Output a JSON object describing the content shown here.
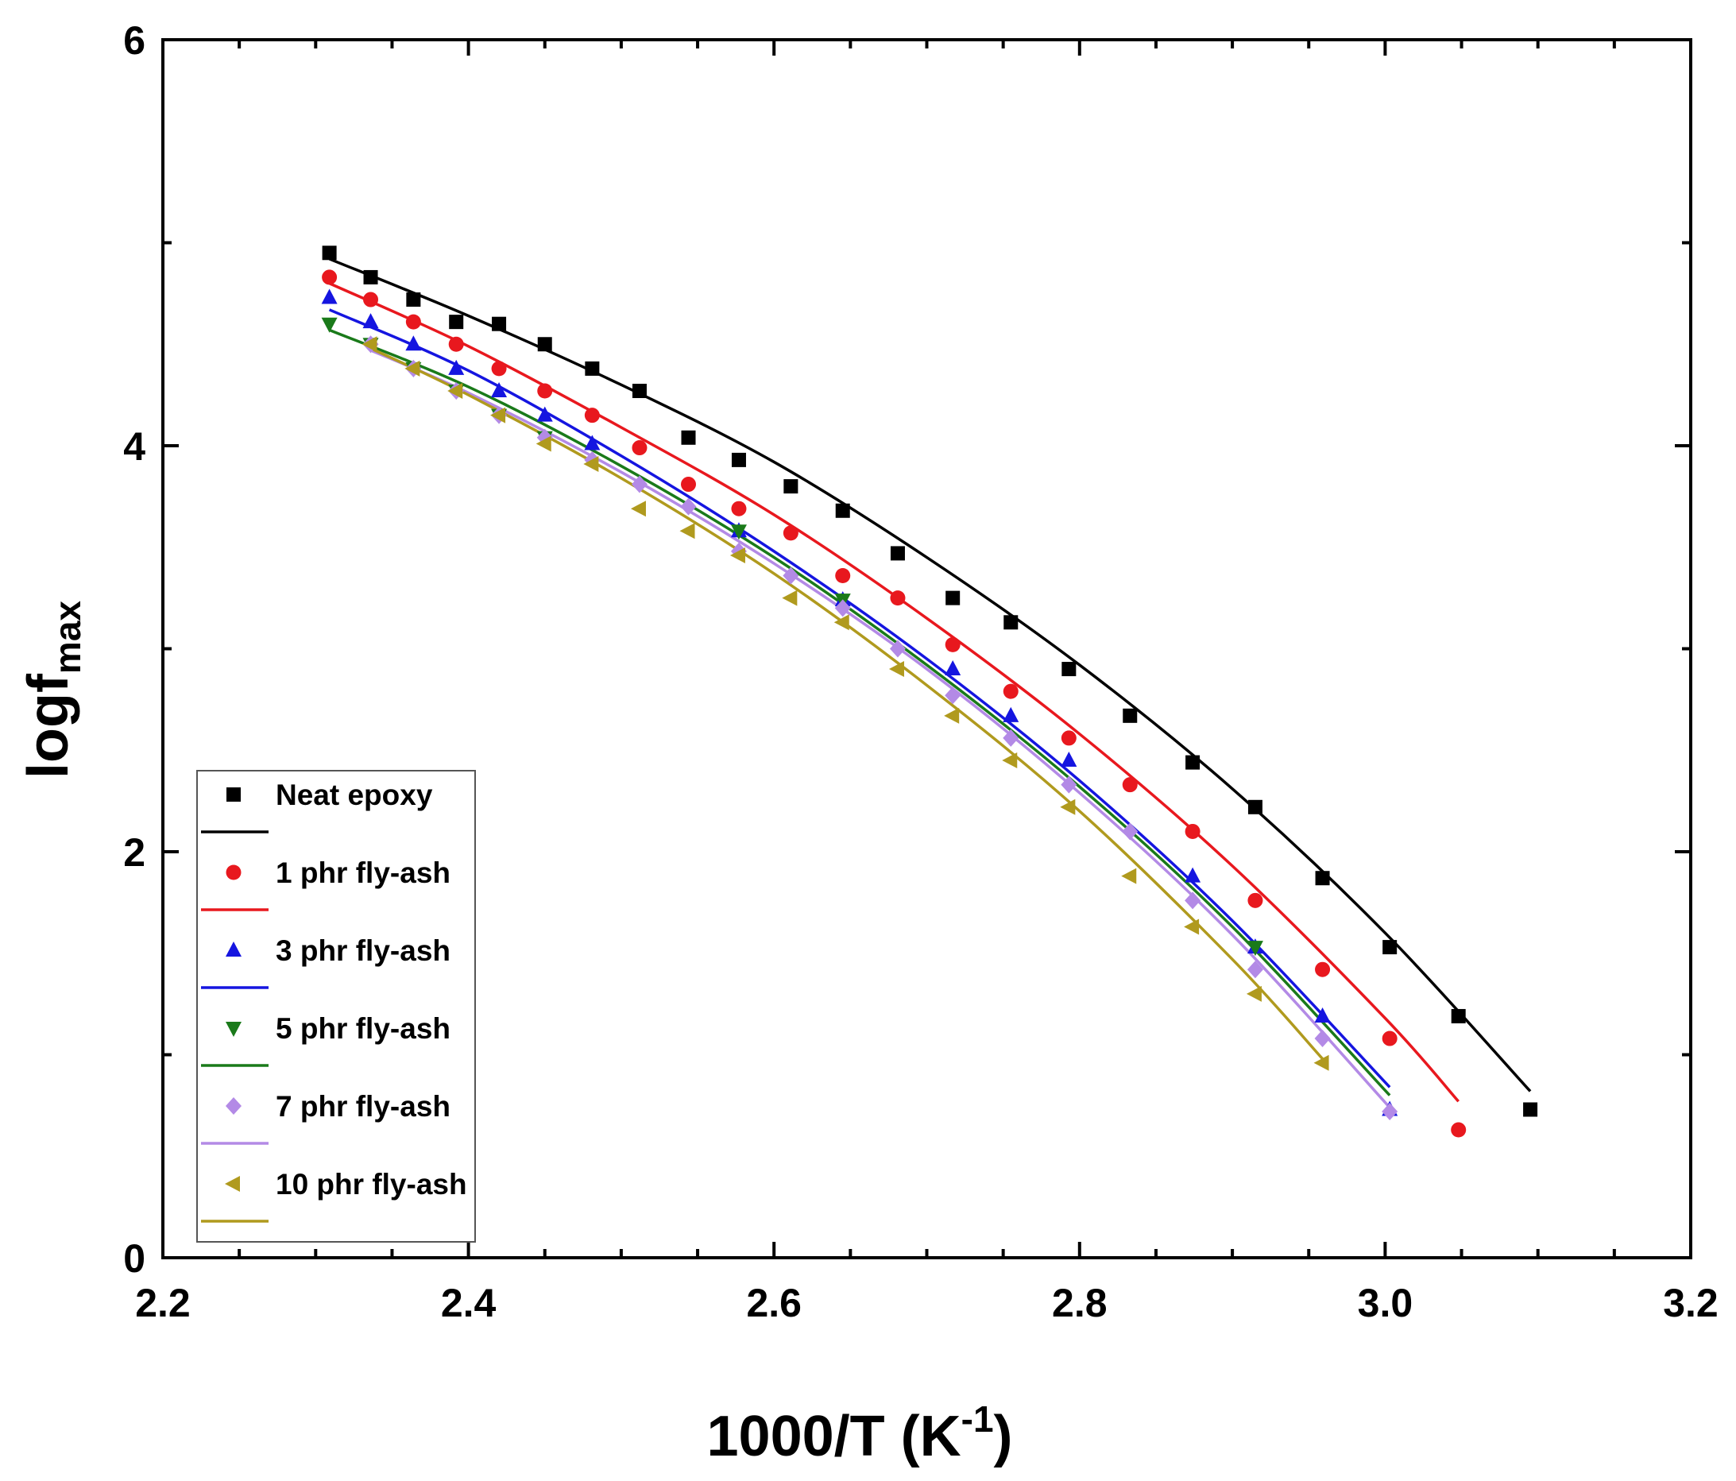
{
  "chart_data": {
    "type": "scatter",
    "title": "",
    "xlabel": "1000/T (K",
    "xlabel_sup": "-1",
    "xlabel_close": ")",
    "ylabel": "logf",
    "ylabel_sub": "max",
    "xlim": [
      2.2,
      3.2
    ],
    "ylim": [
      0,
      6
    ],
    "xticks": [
      2.2,
      2.4,
      2.6,
      2.8,
      3.0,
      3.2
    ],
    "xtick_labels": [
      "2.2",
      "2.4",
      "2.6",
      "2.8",
      "3.0",
      "3.2"
    ],
    "yticks": [
      0,
      2,
      4,
      6
    ],
    "ytick_labels": [
      "0",
      "2",
      "4",
      "6"
    ],
    "grid": false,
    "legend_position": "bottom-left",
    "series": [
      {
        "name": "Neat epoxy",
        "marker": "square",
        "color": "#000000",
        "x": [
          2.309,
          2.336,
          2.364,
          2.392,
          2.42,
          2.45,
          2.481,
          2.512,
          2.544,
          2.577,
          2.611,
          2.645,
          2.681,
          2.717,
          2.755,
          2.793,
          2.833,
          2.874,
          2.915,
          2.959,
          3.003,
          3.048,
          3.095
        ],
        "y": [
          4.95,
          4.83,
          4.72,
          4.61,
          4.6,
          4.5,
          4.38,
          4.27,
          4.04,
          3.93,
          3.8,
          3.68,
          3.47,
          3.25,
          3.13,
          2.9,
          2.67,
          2.44,
          2.22,
          1.87,
          1.53,
          1.19,
          0.73
        ],
        "fit": {
          "x": [
            2.309,
            2.4,
            2.5,
            2.6,
            2.7,
            2.8,
            2.9,
            3.0,
            3.095
          ],
          "y": [
            4.92,
            4.64,
            4.3,
            3.92,
            3.45,
            2.92,
            2.31,
            1.6,
            0.82
          ]
        }
      },
      {
        "name": "1 phr fly-ash",
        "marker": "circle",
        "color": "#e8181e",
        "x": [
          2.309,
          2.336,
          2.364,
          2.392,
          2.42,
          2.45,
          2.481,
          2.512,
          2.544,
          2.577,
          2.611,
          2.645,
          2.681,
          2.717,
          2.755,
          2.793,
          2.833,
          2.874,
          2.915,
          2.959,
          3.003,
          3.048
        ],
        "y": [
          4.83,
          4.72,
          4.61,
          4.5,
          4.38,
          4.27,
          4.15,
          3.99,
          3.81,
          3.69,
          3.57,
          3.36,
          3.25,
          3.02,
          2.79,
          2.56,
          2.33,
          2.1,
          1.76,
          1.42,
          1.08,
          0.63
        ],
        "fit": {
          "x": [
            2.309,
            2.4,
            2.5,
            2.6,
            2.7,
            2.8,
            2.9,
            3.0,
            3.048
          ],
          "y": [
            4.8,
            4.49,
            4.09,
            3.66,
            3.15,
            2.58,
            1.93,
            1.18,
            0.77
          ]
        }
      },
      {
        "name": "3 phr fly-ash",
        "marker": "triangle-up",
        "color": "#1515e0",
        "x": [
          2.309,
          2.336,
          2.364,
          2.392,
          2.42,
          2.45,
          2.481,
          2.577,
          2.645,
          2.717,
          2.755,
          2.793,
          2.874,
          2.915,
          2.959,
          3.003
        ],
        "y": [
          4.73,
          4.61,
          4.5,
          4.38,
          4.27,
          4.15,
          4.01,
          3.58,
          3.24,
          2.9,
          2.67,
          2.45,
          1.88,
          1.53,
          1.19,
          0.73
        ],
        "fit": {
          "x": [
            2.309,
            2.4,
            2.5,
            2.6,
            2.7,
            2.8,
            2.9,
            3.003
          ],
          "y": [
            4.67,
            4.37,
            3.95,
            3.48,
            2.95,
            2.35,
            1.66,
            0.84
          ]
        }
      },
      {
        "name": "5 phr fly-ash",
        "marker": "triangle-down",
        "color": "#1a7a1a",
        "x": [
          2.309,
          2.336,
          2.364,
          2.392,
          2.42,
          2.45,
          2.577,
          2.645,
          2.915
        ],
        "y": [
          4.6,
          4.5,
          4.38,
          4.27,
          4.15,
          4.04,
          3.58,
          3.24,
          1.53
        ],
        "fit": {
          "x": [
            2.309,
            2.4,
            2.5,
            2.6,
            2.7,
            2.8,
            2.9,
            3.003
          ],
          "y": [
            4.57,
            4.29,
            3.9,
            3.45,
            2.92,
            2.32,
            1.63,
            0.8
          ]
        }
      },
      {
        "name": "7 phr fly-ash",
        "marker": "diamond",
        "color": "#b38ae6",
        "x": [
          2.336,
          2.364,
          2.392,
          2.42,
          2.45,
          2.481,
          2.512,
          2.544,
          2.577,
          2.611,
          2.645,
          2.681,
          2.717,
          2.755,
          2.793,
          2.833,
          2.874,
          2.915,
          2.959,
          3.003
        ],
        "y": [
          4.5,
          4.38,
          4.27,
          4.15,
          4.04,
          3.93,
          3.81,
          3.7,
          3.48,
          3.36,
          3.2,
          3.0,
          2.77,
          2.56,
          2.33,
          2.1,
          1.76,
          1.42,
          1.08,
          0.72
        ],
        "fit": {
          "x": [
            2.336,
            2.4,
            2.5,
            2.6,
            2.7,
            2.8,
            2.9,
            3.003
          ],
          "y": [
            4.47,
            4.26,
            3.87,
            3.42,
            2.9,
            2.29,
            1.59,
            0.74
          ]
        }
      },
      {
        "name": "10 phr fly-ash",
        "marker": "triangle-left",
        "color": "#b09a1e",
        "x": [
          2.336,
          2.364,
          2.392,
          2.42,
          2.45,
          2.481,
          2.512,
          2.544,
          2.577,
          2.611,
          2.645,
          2.681,
          2.717,
          2.755,
          2.793,
          2.833,
          2.874,
          2.915,
          2.959
        ],
        "y": [
          4.5,
          4.38,
          4.27,
          4.15,
          4.01,
          3.91,
          3.69,
          3.58,
          3.46,
          3.25,
          3.13,
          2.9,
          2.67,
          2.45,
          2.22,
          1.88,
          1.63,
          1.3,
          0.96
        ],
        "fit": {
          "x": [
            2.336,
            2.4,
            2.5,
            2.6,
            2.7,
            2.8,
            2.9,
            2.959
          ],
          "y": [
            4.48,
            4.25,
            3.84,
            3.37,
            2.82,
            2.2,
            1.47,
            0.98
          ]
        }
      }
    ]
  }
}
